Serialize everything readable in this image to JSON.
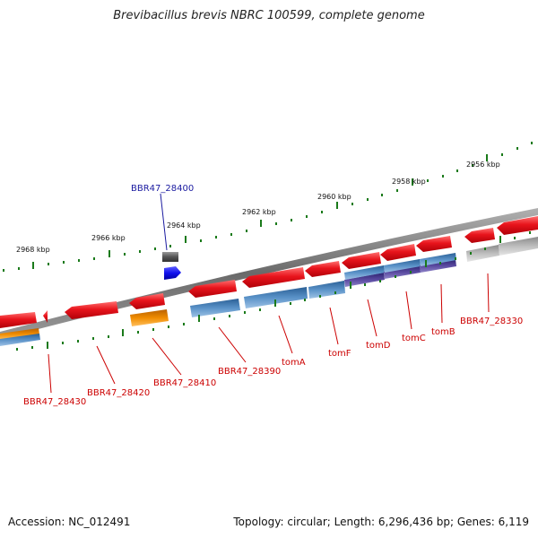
{
  "title": "Brevibacillus brevis NBRC 100599, complete genome",
  "footer": {
    "accession": "Accession: NC_012491",
    "summary": "Topology: circular; Length: 6,296,436 bp; Genes: 6,119"
  },
  "ruler": {
    "ticks": [
      {
        "label": "2968 kbp"
      },
      {
        "label": "2966 kbp"
      },
      {
        "label": "2964 kbp"
      },
      {
        "label": "2962 kbp"
      },
      {
        "label": "2960 kbp"
      },
      {
        "label": "2958 kbp"
      },
      {
        "label": "2956 kbp"
      }
    ]
  },
  "colors": {
    "gene_red": "#e8141c",
    "gene_orange": "#f08c00",
    "gene_blue": "#4a7fb5",
    "gene_purple": "#4b3a8c",
    "gene_gray": "#b8b8b8",
    "label_red": "#cc0000",
    "label_blue": "#1a1aa0",
    "tick_green": "#1a7a1a",
    "backbone": "#808080"
  },
  "gene_labels": [
    {
      "name": "BBR47_28430",
      "color": "red"
    },
    {
      "name": "BBR47_28420",
      "color": "red"
    },
    {
      "name": "BBR47_28410",
      "color": "red"
    },
    {
      "name": "BBR47_28400",
      "color": "blue"
    },
    {
      "name": "BBR47_28390",
      "color": "red"
    },
    {
      "name": "tomA",
      "color": "red"
    },
    {
      "name": "tomF",
      "color": "red"
    },
    {
      "name": "tomD",
      "color": "red"
    },
    {
      "name": "tomC",
      "color": "red"
    },
    {
      "name": "tomB",
      "color": "red"
    },
    {
      "name": "BBR47_28330",
      "color": "red"
    }
  ]
}
